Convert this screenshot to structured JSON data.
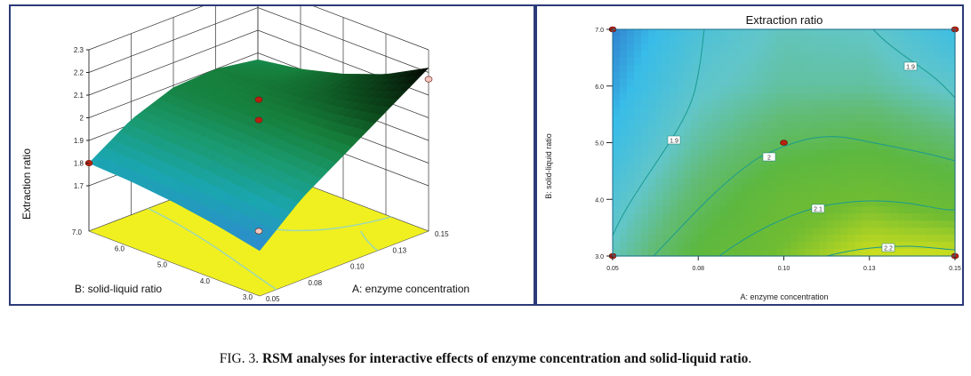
{
  "caption": {
    "prefix": "FIG. 3. ",
    "bold": "RSM analyses for interactive effects of enzyme concentration and solid-liquid ratio",
    "suffix": "."
  },
  "chart_data": [
    {
      "type": "surface3d",
      "title": "",
      "zlabel": "Extraction ratio",
      "xlabel": "A: enzyme concentration",
      "ylabel": "B: solid-liquid ratio",
      "x_ticks": [
        "0.05",
        "0.08",
        "0.10",
        "0.13",
        "0.15"
      ],
      "y_ticks": [
        "7.0",
        "6.0",
        "5.0",
        "4.0",
        "3.0"
      ],
      "z_ticks": [
        "2.3",
        "2.2",
        "2.1",
        "2",
        "1.9",
        "1.8",
        "1.7"
      ],
      "zlim": [
        1.5,
        2.3
      ],
      "A": [
        0.05,
        0.075,
        0.1,
        0.125,
        0.15
      ],
      "B": [
        3,
        4,
        5,
        6,
        7
      ],
      "z": [
        [
          1.7,
          1.86,
          1.98,
          2.1,
          2.22
        ],
        [
          1.74,
          1.88,
          1.98,
          2.06,
          2.12
        ],
        [
          1.77,
          1.9,
          1.99,
          2.03,
          2.05
        ],
        [
          1.79,
          1.91,
          1.99,
          2.01,
          2.0
        ],
        [
          1.8,
          1.92,
          1.99,
          2.0,
          1.97
        ]
      ],
      "design_points": [
        {
          "A": 0.05,
          "B": 7,
          "z": 1.8
        },
        {
          "A": 0.1,
          "B": 5,
          "z": 2.08
        },
        {
          "A": 0.1,
          "B": 5,
          "z": 1.99
        },
        {
          "A": 0.15,
          "B": 3,
          "z": 2.17
        },
        {
          "A": 0.1,
          "B": 5,
          "z": 1.5
        }
      ]
    },
    {
      "type": "contour",
      "title": "Extraction ratio",
      "xlabel": "A: enzyme concentration",
      "ylabel": "B: solid-liquid ratio",
      "x_ticks": [
        "0.05",
        "0.08",
        "0.10",
        "0.13",
        "0.15"
      ],
      "y_ticks": [
        "7.0",
        "6.0",
        "5.0",
        "4.0",
        "3.0"
      ],
      "xlim": [
        0.05,
        0.15
      ],
      "ylim": [
        3.0,
        7.0
      ],
      "A": [
        0.05,
        0.075,
        0.1,
        0.125,
        0.15
      ],
      "B": [
        3,
        4,
        5,
        6,
        7
      ],
      "z": [
        [
          1.93,
          2.05,
          2.13,
          2.2,
          2.2
        ],
        [
          1.89,
          2.0,
          2.09,
          2.12,
          2.08
        ],
        [
          1.85,
          1.95,
          2.01,
          2.03,
          1.99
        ],
        [
          1.82,
          1.91,
          1.95,
          1.95,
          1.91
        ],
        [
          1.8,
          1.88,
          1.93,
          1.92,
          1.85
        ]
      ],
      "contour_labels": [
        "1.9",
        "1.9",
        "2",
        "2.1",
        "2.2"
      ],
      "design_points": [
        {
          "A": 0.05,
          "B": 7.0
        },
        {
          "A": 0.15,
          "B": 7.0
        },
        {
          "A": 0.05,
          "B": 3.0
        },
        {
          "A": 0.15,
          "B": 3.0
        },
        {
          "A": 0.1,
          "B": 5.0
        }
      ]
    }
  ]
}
